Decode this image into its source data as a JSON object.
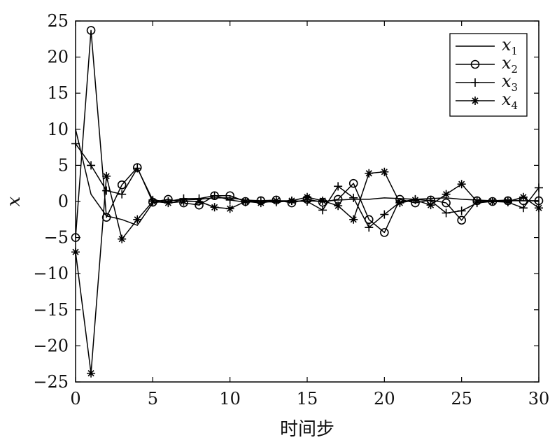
{
  "chart_data": {
    "type": "line",
    "title": "",
    "xlabel": "时间步",
    "ylabel": "x",
    "xlim": [
      0,
      30
    ],
    "ylim": [
      -25,
      25
    ],
    "xticks": [
      0,
      5,
      10,
      15,
      20,
      25,
      30
    ],
    "yticks": [
      25,
      20,
      15,
      10,
      5,
      0,
      -5,
      -10,
      -15,
      -20,
      -25
    ],
    "xtick_labels": [
      "0",
      "5",
      "10",
      "15",
      "20",
      "25",
      "30"
    ],
    "ytick_labels": [
      "25",
      "20",
      "15",
      "10",
      "5",
      "0",
      "−5",
      "−10",
      "−15",
      "−20",
      "−25"
    ],
    "grid": false,
    "legend_position": "top-right",
    "x": [
      0,
      1,
      2,
      3,
      4,
      5,
      6,
      7,
      8,
      9,
      10,
      11,
      12,
      13,
      14,
      15,
      16,
      17,
      18,
      19,
      20,
      21,
      22,
      23,
      24,
      25,
      26,
      27,
      28,
      29,
      30
    ],
    "series": [
      {
        "name": "x",
        "sub": "1",
        "marker": "none",
        "values": [
          10,
          1,
          -2,
          -2.5,
          -3.3,
          -0.2,
          0.1,
          0.2,
          0.3,
          0.5,
          0.5,
          0.2,
          0.1,
          0.1,
          0,
          0.1,
          0,
          0.2,
          0.3,
          0.3,
          0.5,
          0.4,
          0.3,
          0.4,
          0.5,
          0.3,
          0.2,
          0.1,
          0.2,
          0.1,
          0.1
        ]
      },
      {
        "name": "x",
        "sub": "2",
        "marker": "circle",
        "values": [
          -5,
          23.7,
          -2.2,
          2.3,
          4.7,
          -0.1,
          0.3,
          -0.2,
          -0.5,
          0.8,
          0.8,
          0,
          0.1,
          0.2,
          -0.2,
          0.3,
          -0.1,
          0.3,
          2.5,
          -2.5,
          -4.3,
          0.3,
          -0.2,
          0.2,
          -0.2,
          -2.6,
          0.1,
          0,
          0.1,
          0.1,
          0.1
        ]
      },
      {
        "name": "x",
        "sub": "3",
        "marker": "plus",
        "values": [
          8,
          5,
          1.5,
          1,
          4.6,
          0.2,
          0,
          0.4,
          0.4,
          0.8,
          0.2,
          -0.1,
          0,
          -0.1,
          0.1,
          0,
          -1.2,
          2.1,
          0.5,
          -3.6,
          -1.8,
          -0.1,
          0.3,
          0.1,
          -1.6,
          -1.3,
          -0.2,
          0,
          -0.1,
          -0.9,
          1.9
        ]
      },
      {
        "name": "x",
        "sub": "4",
        "marker": "star",
        "values": [
          -7,
          -23.8,
          3.5,
          -5.2,
          -2.5,
          0,
          -0.2,
          0,
          0,
          -0.8,
          -1,
          0,
          -0.2,
          0.1,
          0.1,
          0.6,
          0.1,
          -0.6,
          -2.5,
          3.9,
          4.1,
          -0.2,
          0.2,
          -0.5,
          1,
          2.4,
          0,
          0,
          0,
          0.6,
          -0.9
        ]
      }
    ]
  }
}
